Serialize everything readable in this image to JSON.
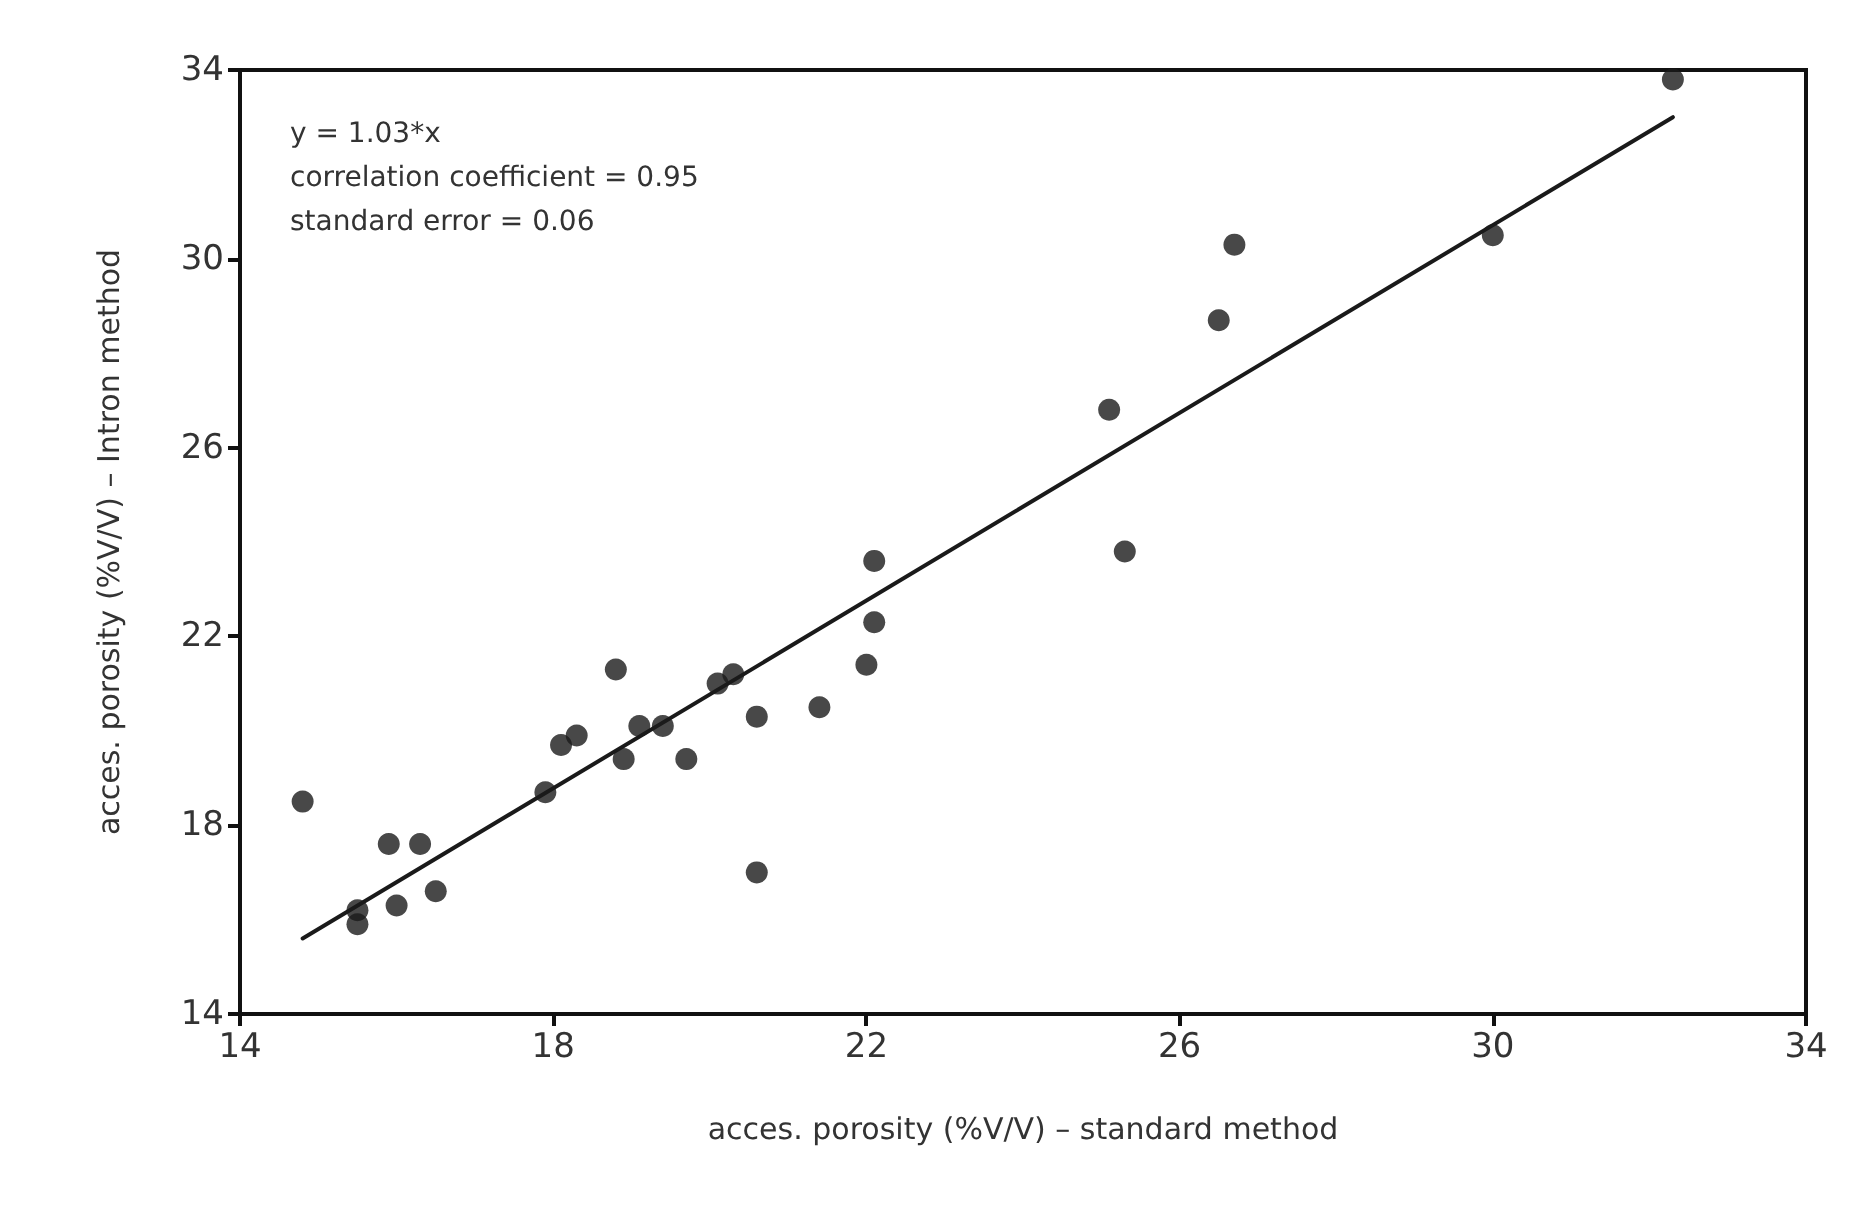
{
  "chart_data": {
    "type": "scatter",
    "xlabel": "acces. porosity (%V/V) – standard method",
    "ylabel": "acces. porosity (%V/V) – Intron method",
    "annotations": [
      "y = 1.03*x",
      "correlation coefficient = 0.95",
      "standard error = 0.06"
    ],
    "xlim": [
      14,
      34
    ],
    "xticks": [
      14,
      18,
      22,
      26,
      30,
      34
    ],
    "ylim": [
      14,
      34
    ],
    "yticks": [
      14,
      18,
      22,
      26,
      30,
      34
    ],
    "grid": false,
    "marker": "circle",
    "series": [
      {
        "color": "#1a1a1a",
        "x": [
          14.8,
          15.5,
          15.5,
          15.9,
          16.0,
          16.3,
          16.5,
          17.9,
          18.1,
          18.3,
          18.8,
          18.9,
          19.1,
          19.4,
          19.7,
          20.1,
          20.3,
          20.6,
          20.6,
          21.4,
          22.0,
          22.1,
          22.1,
          25.1,
          25.3,
          26.5,
          26.7,
          30.0,
          32.3
        ],
        "values": [
          18.5,
          16.2,
          15.9,
          17.6,
          16.3,
          17.6,
          16.6,
          18.7,
          19.7,
          19.9,
          21.3,
          19.4,
          20.1,
          20.1,
          19.4,
          21.0,
          21.2,
          17.0,
          20.3,
          20.5,
          21.4,
          22.3,
          23.6,
          26.8,
          23.8,
          28.7,
          30.3,
          30.5,
          33.8
        ]
      },
      {
        "type": "line",
        "color": "#1a1a1a",
        "line_style": "solid",
        "marker": "none",
        "x": [
          14.8,
          32.3
        ],
        "values": [
          15.6,
          33.0
        ]
      }
    ]
  }
}
